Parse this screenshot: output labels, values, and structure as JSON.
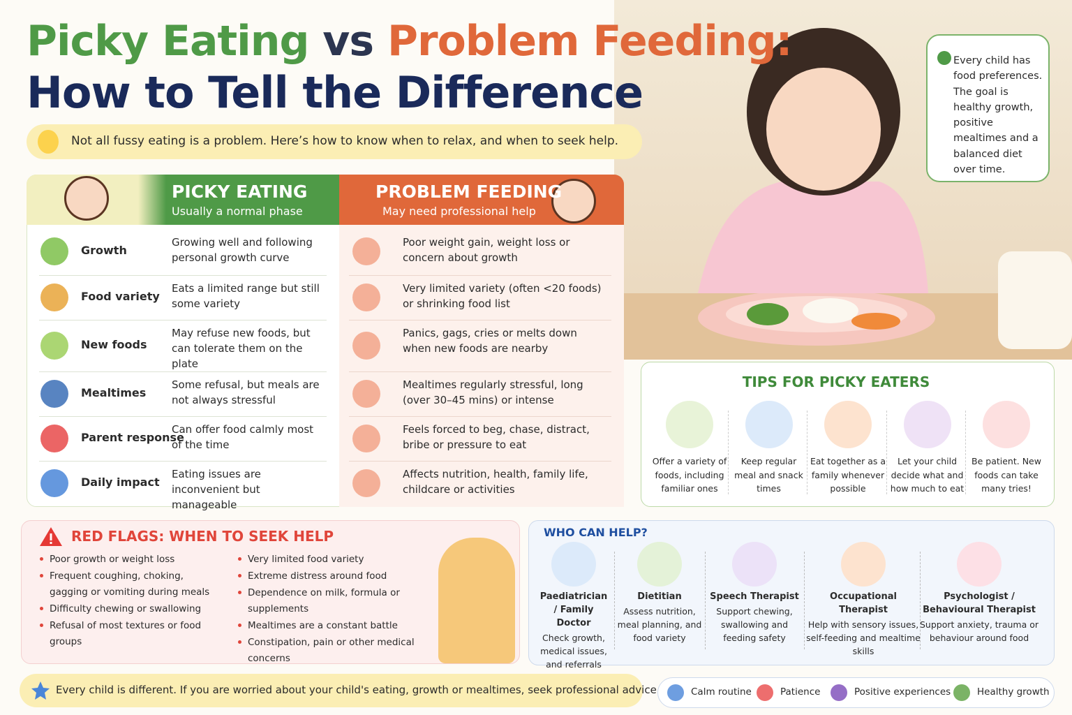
{
  "header": {
    "title_picky": "Picky Eating",
    "title_vs": "vs",
    "title_problem": "Problem Feeding:",
    "title_line2": "How to Tell the Difference",
    "subtitle": "Not all fussy eating is a problem. Here’s how to know when to relax, and when to seek help."
  },
  "callout": "Every child has food preferences. The goal is healthy growth, positive mealtimes and a balanced diet over time.",
  "comparison": {
    "picky": {
      "heading": "PICKY EATING",
      "sub": "Usually a normal phase"
    },
    "problem": {
      "heading": "PROBLEM FEEDING",
      "sub": "May need professional help"
    },
    "rows": [
      {
        "label": "Growth",
        "picky": "Growing well and following personal growth curve",
        "problem": "Poor weight gain, weight loss or concern about growth"
      },
      {
        "label": "Food variety",
        "picky": "Eats a limited range but still some variety",
        "problem": "Very limited variety (often <20 foods) or shrinking food list"
      },
      {
        "label": "New foods",
        "picky": "May refuse new foods, but can tolerate them on the plate",
        "problem": "Panics, gags, cries or melts down when new foods are nearby"
      },
      {
        "label": "Mealtimes",
        "picky": "Some refusal, but meals are not always stressful",
        "problem": "Mealtimes regularly stressful, long (over 30–45 mins) or intense"
      },
      {
        "label": "Parent response",
        "picky": "Can offer food calmly most of the time",
        "problem": "Feels forced to beg, chase, distract, bribe or pressure to eat"
      },
      {
        "label": "Daily impact",
        "picky": "Eating issues are inconvenient but manageable",
        "problem": "Affects nutrition, health, family life, childcare or activities"
      }
    ]
  },
  "tips": {
    "heading": "TIPS FOR PICKY EATERS",
    "items": [
      "Offer a variety of foods, including familiar ones",
      "Keep regular meal and snack times",
      "Eat together as a family whenever possible",
      "Let your child decide what and how much to eat",
      "Be patient. New foods can take many tries!"
    ]
  },
  "red_flags": {
    "heading": "RED FLAGS: WHEN TO SEEK HELP",
    "left": [
      "Poor growth or weight loss",
      "Frequent coughing, choking, gagging or vomiting during meals",
      "Difficulty chewing or swallowing",
      "Refusal of most textures or food groups"
    ],
    "right": [
      "Very limited food variety",
      "Extreme distress around food",
      "Dependence on milk, formula or supplements",
      "Mealtimes are a constant battle",
      "Constipation, pain or other medical concerns"
    ]
  },
  "who_can_help": {
    "heading": "WHO CAN HELP?",
    "items": [
      {
        "role": "Paediatrician / Family Doctor",
        "text": "Check growth, medical issues, and referrals"
      },
      {
        "role": "Dietitian",
        "text": "Assess nutrition, meal planning, and food variety"
      },
      {
        "role": "Speech Therapist",
        "text": "Support chewing, swallowing and feeding safety"
      },
      {
        "role": "Occupational Therapist",
        "text": "Help with sensory issues, self-feeding and mealtime skills"
      },
      {
        "role": "Psychologist / Behavioural Therapist",
        "text": "Support anxiety, trauma or behaviour around food"
      }
    ]
  },
  "footer": {
    "note": "Every child is different. If you are worried about your child's eating, growth or mealtimes, seek professional advice early.",
    "pills": [
      "Calm routine",
      "Patience",
      "Positive experiences",
      "Healthy growth"
    ]
  }
}
